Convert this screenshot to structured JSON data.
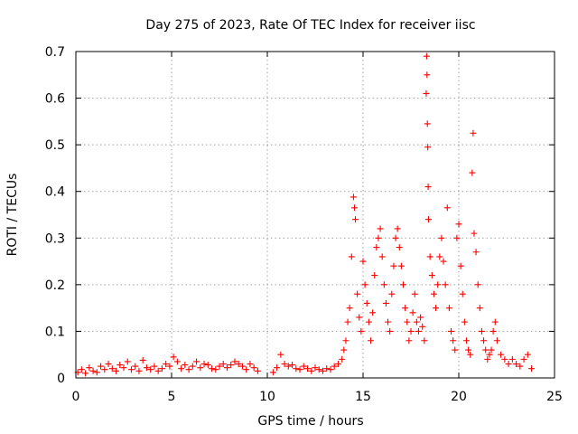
{
  "chart_data": {
    "type": "scatter",
    "title": "Day 275 of 2023, Rate Of TEC Index for receiver iisc",
    "xlabel": "GPS time / hours",
    "ylabel": "ROTI / TECUs",
    "xlim": [
      0,
      25
    ],
    "ylim": [
      0,
      0.7
    ],
    "xticks": [
      0,
      5,
      10,
      15,
      20,
      25
    ],
    "yticks": [
      0,
      0.1,
      0.2,
      0.3,
      0.4,
      0.5,
      0.6,
      0.7
    ],
    "xtick_labels": [
      "0",
      "5",
      "10",
      "15",
      "20",
      "25"
    ],
    "ytick_labels": [
      "0",
      "0.1",
      "0.2",
      "0.3",
      "0.4",
      "0.5",
      "0.6",
      "0.7"
    ],
    "grid": true,
    "marker": "+",
    "color": "#ff0000",
    "series": [
      {
        "name": "ROTI iisc",
        "points": [
          [
            0.1,
            0.012
          ],
          [
            0.3,
            0.018
          ],
          [
            0.5,
            0.01
          ],
          [
            0.7,
            0.022
          ],
          [
            0.9,
            0.015
          ],
          [
            1.1,
            0.012
          ],
          [
            1.3,
            0.025
          ],
          [
            1.5,
            0.018
          ],
          [
            1.7,
            0.03
          ],
          [
            1.9,
            0.02
          ],
          [
            2.1,
            0.015
          ],
          [
            2.3,
            0.028
          ],
          [
            2.5,
            0.022
          ],
          [
            2.7,
            0.035
          ],
          [
            2.9,
            0.018
          ],
          [
            3.1,
            0.025
          ],
          [
            3.3,
            0.015
          ],
          [
            3.5,
            0.038
          ],
          [
            3.7,
            0.022
          ],
          [
            3.9,
            0.018
          ],
          [
            4.1,
            0.025
          ],
          [
            4.3,
            0.015
          ],
          [
            4.5,
            0.02
          ],
          [
            4.7,
            0.03
          ],
          [
            4.9,
            0.025
          ],
          [
            5.1,
            0.045
          ],
          [
            5.3,
            0.035
          ],
          [
            5.5,
            0.02
          ],
          [
            5.7,
            0.028
          ],
          [
            5.9,
            0.018
          ],
          [
            6.1,
            0.025
          ],
          [
            6.3,
            0.035
          ],
          [
            6.5,
            0.022
          ],
          [
            6.7,
            0.03
          ],
          [
            6.9,
            0.028
          ],
          [
            7.1,
            0.02
          ],
          [
            7.3,
            0.018
          ],
          [
            7.5,
            0.025
          ],
          [
            7.7,
            0.03
          ],
          [
            7.9,
            0.022
          ],
          [
            8.1,
            0.028
          ],
          [
            8.3,
            0.035
          ],
          [
            8.5,
            0.03
          ],
          [
            8.7,
            0.025
          ],
          [
            8.9,
            0.018
          ],
          [
            9.1,
            0.03
          ],
          [
            9.3,
            0.022
          ],
          [
            9.5,
            0.015
          ],
          [
            10.3,
            0.012
          ],
          [
            10.5,
            0.022
          ],
          [
            10.7,
            0.05
          ],
          [
            10.9,
            0.03
          ],
          [
            11.1,
            0.025
          ],
          [
            11.3,
            0.028
          ],
          [
            11.5,
            0.02
          ],
          [
            11.7,
            0.018
          ],
          [
            11.9,
            0.025
          ],
          [
            12.1,
            0.02
          ],
          [
            12.3,
            0.015
          ],
          [
            12.5,
            0.022
          ],
          [
            12.7,
            0.018
          ],
          [
            12.9,
            0.015
          ],
          [
            13.1,
            0.02
          ],
          [
            13.3,
            0.018
          ],
          [
            13.5,
            0.025
          ],
          [
            13.7,
            0.03
          ],
          [
            13.9,
            0.04
          ],
          [
            14.0,
            0.06
          ],
          [
            14.1,
            0.08
          ],
          [
            14.2,
            0.12
          ],
          [
            14.3,
            0.15
          ],
          [
            14.4,
            0.26
          ],
          [
            14.5,
            0.388
          ],
          [
            14.55,
            0.365
          ],
          [
            14.6,
            0.34
          ],
          [
            14.7,
            0.18
          ],
          [
            14.8,
            0.13
          ],
          [
            14.9,
            0.1
          ],
          [
            15.0,
            0.25
          ],
          [
            15.1,
            0.2
          ],
          [
            15.2,
            0.16
          ],
          [
            15.3,
            0.12
          ],
          [
            15.4,
            0.08
          ],
          [
            15.5,
            0.14
          ],
          [
            15.6,
            0.22
          ],
          [
            15.7,
            0.28
          ],
          [
            15.8,
            0.3
          ],
          [
            15.9,
            0.32
          ],
          [
            16.0,
            0.26
          ],
          [
            16.1,
            0.2
          ],
          [
            16.2,
            0.16
          ],
          [
            16.3,
            0.12
          ],
          [
            16.4,
            0.1
          ],
          [
            16.5,
            0.18
          ],
          [
            16.6,
            0.24
          ],
          [
            16.7,
            0.3
          ],
          [
            16.8,
            0.32
          ],
          [
            16.9,
            0.28
          ],
          [
            17.0,
            0.24
          ],
          [
            17.1,
            0.2
          ],
          [
            17.2,
            0.15
          ],
          [
            17.3,
            0.12
          ],
          [
            17.4,
            0.08
          ],
          [
            17.5,
            0.1
          ],
          [
            17.6,
            0.14
          ],
          [
            17.7,
            0.18
          ],
          [
            17.8,
            0.12
          ],
          [
            17.9,
            0.1
          ],
          [
            18.0,
            0.13
          ],
          [
            18.1,
            0.11
          ],
          [
            18.2,
            0.08
          ],
          [
            18.3,
            0.61
          ],
          [
            18.32,
            0.69
          ],
          [
            18.34,
            0.65
          ],
          [
            18.36,
            0.545
          ],
          [
            18.38,
            0.495
          ],
          [
            18.4,
            0.41
          ],
          [
            18.42,
            0.34
          ],
          [
            18.5,
            0.26
          ],
          [
            18.6,
            0.22
          ],
          [
            18.7,
            0.18
          ],
          [
            18.8,
            0.15
          ],
          [
            18.9,
            0.2
          ],
          [
            19.0,
            0.26
          ],
          [
            19.1,
            0.3
          ],
          [
            19.2,
            0.25
          ],
          [
            19.3,
            0.2
          ],
          [
            19.4,
            0.365
          ],
          [
            19.5,
            0.15
          ],
          [
            19.6,
            0.1
          ],
          [
            19.7,
            0.08
          ],
          [
            19.8,
            0.06
          ],
          [
            19.9,
            0.3
          ],
          [
            20.0,
            0.33
          ],
          [
            20.1,
            0.24
          ],
          [
            20.2,
            0.18
          ],
          [
            20.3,
            0.12
          ],
          [
            20.4,
            0.08
          ],
          [
            20.5,
            0.06
          ],
          [
            20.6,
            0.05
          ],
          [
            20.7,
            0.44
          ],
          [
            20.75,
            0.525
          ],
          [
            20.8,
            0.31
          ],
          [
            20.9,
            0.27
          ],
          [
            21.0,
            0.2
          ],
          [
            21.1,
            0.15
          ],
          [
            21.2,
            0.1
          ],
          [
            21.3,
            0.08
          ],
          [
            21.4,
            0.06
          ],
          [
            21.5,
            0.04
          ],
          [
            21.6,
            0.05
          ],
          [
            21.7,
            0.06
          ],
          [
            21.8,
            0.1
          ],
          [
            21.9,
            0.12
          ],
          [
            22.0,
            0.08
          ],
          [
            22.2,
            0.05
          ],
          [
            22.4,
            0.04
          ],
          [
            22.6,
            0.03
          ],
          [
            22.8,
            0.04
          ],
          [
            23.0,
            0.03
          ],
          [
            23.2,
            0.025
          ],
          [
            23.4,
            0.04
          ],
          [
            23.6,
            0.05
          ],
          [
            23.8,
            0.02
          ]
        ]
      }
    ]
  }
}
